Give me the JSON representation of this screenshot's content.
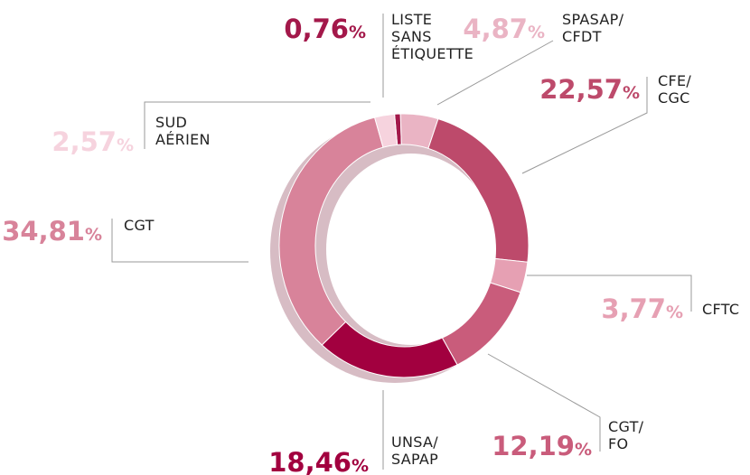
{
  "chart_data": {
    "type": "donut",
    "categories": [
      "LISTE\nSANS\nÉTIQUETTE",
      "SPASAP/\nCFDT",
      "CFE/\nCGC",
      "CFTC",
      "CGT/\nFO",
      "UNSA/\nSAPAP",
      "CGT",
      "SUD\nAÉRIEN"
    ],
    "values": [
      0.76,
      4.87,
      22.57,
      3.77,
      12.19,
      18.46,
      34.81,
      2.57
    ],
    "value_labels": [
      "0,76",
      "4,87",
      "22,57",
      "3,77",
      "12,19",
      "18,46",
      "34,81",
      "2,57"
    ],
    "unit": "%",
    "colors": [
      "#a3184a",
      "#eab4c4",
      "#bd4a6b",
      "#e6a0b3",
      "#c95c7b",
      "#a2003f",
      "#d8839a",
      "#f6d3de"
    ]
  }
}
